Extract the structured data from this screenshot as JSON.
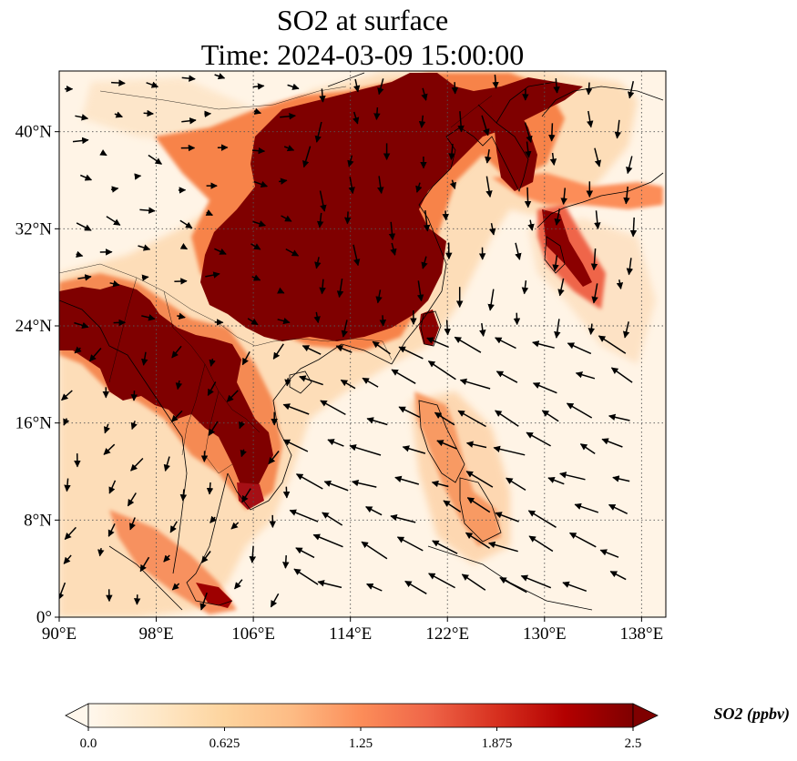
{
  "title": {
    "line1": "SO2 at surface",
    "line2": "Time: 2024-03-09 15:00:00"
  },
  "map": {
    "projection": "PlateCarree",
    "lon_range": [
      90,
      140
    ],
    "lat_range": [
      0,
      45
    ],
    "gridlines": "dotted",
    "lon_ticks": [
      {
        "value": 90,
        "label": "90°E"
      },
      {
        "value": 98,
        "label": "98°E"
      },
      {
        "value": 106,
        "label": "106°E"
      },
      {
        "value": 114,
        "label": "114°E"
      },
      {
        "value": 122,
        "label": "122°E"
      },
      {
        "value": 130,
        "label": "130°E"
      },
      {
        "value": 138,
        "label": "138°E"
      }
    ],
    "lat_ticks": [
      {
        "value": 0,
        "label": "0°"
      },
      {
        "value": 8,
        "label": "8°N"
      },
      {
        "value": 16,
        "label": "16°N"
      },
      {
        "value": 24,
        "label": "24°N"
      },
      {
        "value": 32,
        "label": "32°N"
      },
      {
        "value": 40,
        "label": "40°N"
      }
    ],
    "wind_vectors": "shown as black arrows"
  },
  "colorbar": {
    "title": "SO2 (ppbv)",
    "min": 0.0,
    "max": 2.5,
    "extend": "both",
    "colormap": "OrRd",
    "stops": [
      "#fff7ec",
      "#fee8c8",
      "#fdd49e",
      "#fdbb84",
      "#fc8d59",
      "#ef6548",
      "#d7301f",
      "#b30000",
      "#7f0000"
    ],
    "ticks": [
      {
        "value": 0.0,
        "label": "0.0"
      },
      {
        "value": 0.625,
        "label": "0.625"
      },
      {
        "value": 1.25,
        "label": "1.25"
      },
      {
        "value": 1.875,
        "label": "1.875"
      },
      {
        "value": 2.5,
        "label": "2.5"
      }
    ]
  }
}
